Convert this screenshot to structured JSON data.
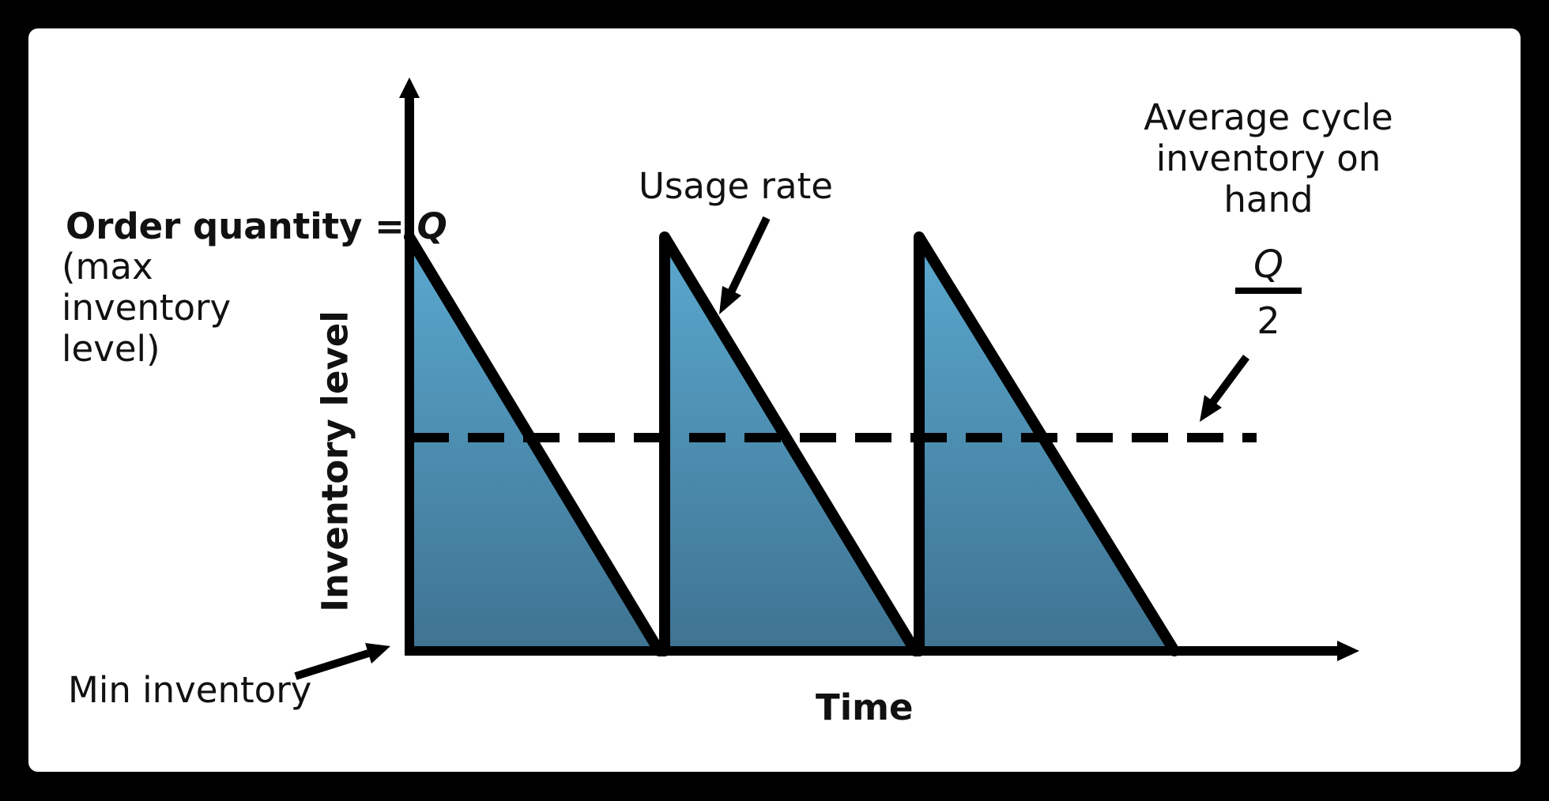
{
  "labels": {
    "order_quantity_prefix": "Order quantity = ",
    "order_quantity_symbol": "Q",
    "max_inventory": "(max inventory level)",
    "usage_rate": "Usage rate",
    "average_cycle": "Average cycle inventory on hand",
    "fraction_numerator": "Q",
    "fraction_denominator": "2",
    "min_inventory": "Min inventory",
    "x_axis": "Time",
    "y_axis": "Inventory level"
  },
  "colors": {
    "background": "#000000",
    "panel": "#ffffff",
    "fill_top": "#5aa8cf",
    "fill_bottom": "#3f7391",
    "stroke": "#000000"
  },
  "diagram": {
    "cycles": 3,
    "average_level_fraction": 0.5
  }
}
